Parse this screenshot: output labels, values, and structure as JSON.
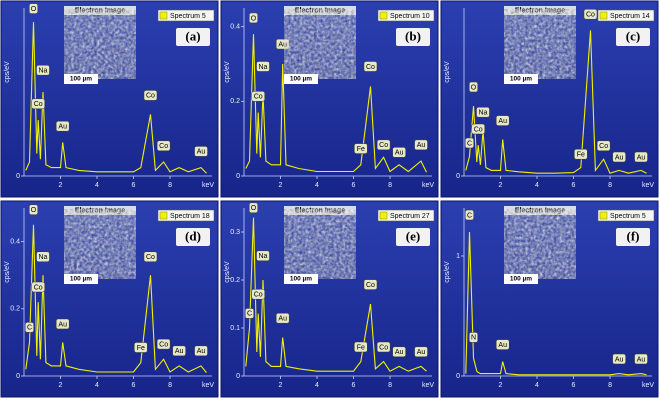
{
  "chart_data": [
    {
      "type": "line",
      "panel": "(a)",
      "inset_title": "Electron Image",
      "scale_bar": "100 µm",
      "xlabel": "keV",
      "ylabel": "cps/eV",
      "x": [
        0.1,
        0.3,
        0.52,
        0.7,
        0.78,
        0.9,
        1.04,
        1.2,
        1.5,
        2.0,
        2.12,
        2.3,
        3,
        4,
        5,
        6,
        6.4,
        6.93,
        7.2,
        7.65,
        8,
        8.5,
        9,
        9.7,
        10
      ],
      "series": [
        {
          "name": "Spectrum 5",
          "color": "#f2f200",
          "values": [
            0.02,
            0.05,
            0.55,
            0.08,
            0.2,
            0.06,
            0.3,
            0.04,
            0.03,
            0.03,
            0.12,
            0.03,
            0.02,
            0.015,
            0.015,
            0.015,
            0.03,
            0.22,
            0.02,
            0.05,
            0.015,
            0.03,
            0.015,
            0.03,
            0.01
          ]
        }
      ],
      "xlim": [
        0,
        10.3
      ],
      "xticks": [
        2,
        4,
        6,
        8
      ],
      "ylim": [
        0,
        0.6
      ],
      "yticks": [
        0
      ],
      "peaks": [
        {
          "label": "O",
          "x": 0.52,
          "y": 0.58
        },
        {
          "label": "Na",
          "x": 1.04,
          "y": 0.36
        },
        {
          "label": "Co",
          "x": 0.78,
          "y": 0.24
        },
        {
          "label": "Au",
          "x": 2.12,
          "y": 0.16
        },
        {
          "label": "Co",
          "x": 6.93,
          "y": 0.27
        },
        {
          "label": "Co",
          "x": 7.65,
          "y": 0.09
        },
        {
          "label": "Au",
          "x": 9.7,
          "y": 0.07
        }
      ]
    },
    {
      "type": "line",
      "panel": "(b)",
      "inset_title": "Electron Image",
      "scale_bar": "100 µm",
      "xlabel": "keV",
      "ylabel": "cps/eV",
      "x": [
        0.1,
        0.3,
        0.52,
        0.7,
        0.78,
        0.9,
        1.04,
        1.2,
        1.5,
        2.0,
        2.12,
        2.3,
        3,
        4,
        5,
        6,
        6.4,
        6.93,
        7.2,
        7.65,
        8,
        8.5,
        9,
        9.7,
        10
      ],
      "series": [
        {
          "name": "Spectrum 10",
          "color": "#f2f200",
          "values": [
            0.02,
            0.04,
            0.38,
            0.06,
            0.17,
            0.05,
            0.22,
            0.04,
            0.03,
            0.03,
            0.3,
            0.03,
            0.02,
            0.012,
            0.012,
            0.012,
            0.03,
            0.24,
            0.02,
            0.05,
            0.012,
            0.03,
            0.012,
            0.04,
            0.01
          ]
        }
      ],
      "xlim": [
        0,
        10.3
      ],
      "xticks": [
        2,
        4,
        6,
        8
      ],
      "ylim": [
        0,
        0.45
      ],
      "yticks": [
        0,
        0.2,
        0.4
      ],
      "peaks": [
        {
          "label": "O",
          "x": 0.52,
          "y": 0.41
        },
        {
          "label": "Na",
          "x": 1.04,
          "y": 0.28
        },
        {
          "label": "Co",
          "x": 0.78,
          "y": 0.2
        },
        {
          "label": "Au",
          "x": 2.12,
          "y": 0.34
        },
        {
          "label": "Fe",
          "x": 6.4,
          "y": 0.06
        },
        {
          "label": "Co",
          "x": 6.93,
          "y": 0.28
        },
        {
          "label": "Co",
          "x": 7.65,
          "y": 0.07
        },
        {
          "label": "Au",
          "x": 8.5,
          "y": 0.05
        },
        {
          "label": "Au",
          "x": 9.7,
          "y": 0.07
        }
      ]
    },
    {
      "type": "line",
      "panel": "(c)",
      "inset_title": "Electron Image",
      "scale_bar": "100 µm",
      "xlabel": "keV",
      "ylabel": "cps/eV",
      "x": [
        0.1,
        0.3,
        0.52,
        0.7,
        0.78,
        0.9,
        1.04,
        1.2,
        1.5,
        2.0,
        2.12,
        2.3,
        3,
        4,
        5,
        6,
        6.4,
        6.93,
        7.2,
        7.65,
        8,
        8.5,
        9,
        9.7,
        10
      ],
      "series": [
        {
          "name": "Spectrum 14",
          "color": "#f2f200",
          "values": [
            0.02,
            0.07,
            0.25,
            0.05,
            0.11,
            0.04,
            0.16,
            0.03,
            0.02,
            0.02,
            0.13,
            0.02,
            0.015,
            0.01,
            0.01,
            0.012,
            0.03,
            0.52,
            0.02,
            0.06,
            0.01,
            0.02,
            0.01,
            0.02,
            0.01
          ]
        }
      ],
      "xlim": [
        0,
        10.3
      ],
      "xticks": [
        2,
        4,
        6,
        8
      ],
      "ylim": [
        0,
        0.6
      ],
      "yticks": [
        0
      ],
      "peaks": [
        {
          "label": "C",
          "x": 0.3,
          "y": 0.1
        },
        {
          "label": "O",
          "x": 0.52,
          "y": 0.3
        },
        {
          "label": "Na",
          "x": 1.04,
          "y": 0.21
        },
        {
          "label": "Co",
          "x": 0.78,
          "y": 0.15
        },
        {
          "label": "Au",
          "x": 2.12,
          "y": 0.18
        },
        {
          "label": "Fe",
          "x": 6.4,
          "y": 0.06
        },
        {
          "label": "Co",
          "x": 6.93,
          "y": 0.56
        },
        {
          "label": "Co",
          "x": 7.65,
          "y": 0.09
        },
        {
          "label": "Au",
          "x": 8.5,
          "y": 0.05
        },
        {
          "label": "Au",
          "x": 9.7,
          "y": 0.05
        }
      ]
    },
    {
      "type": "line",
      "panel": "(d)",
      "inset_title": "Electron Image",
      "scale_bar": "100 µm",
      "xlabel": "keV",
      "ylabel": "cps/eV",
      "x": [
        0.1,
        0.3,
        0.52,
        0.7,
        0.78,
        0.9,
        1.04,
        1.2,
        1.5,
        2.0,
        2.12,
        2.3,
        3,
        4,
        5,
        6,
        6.4,
        6.93,
        7.2,
        7.65,
        8,
        8.5,
        9,
        9.7,
        10
      ],
      "series": [
        {
          "name": "Spectrum 18",
          "color": "#f2f200",
          "values": [
            0.02,
            0.1,
            0.45,
            0.06,
            0.22,
            0.05,
            0.3,
            0.04,
            0.03,
            0.03,
            0.1,
            0.03,
            0.02,
            0.012,
            0.012,
            0.012,
            0.04,
            0.3,
            0.02,
            0.05,
            0.012,
            0.03,
            0.012,
            0.03,
            0.01
          ]
        }
      ],
      "xlim": [
        0,
        10.3
      ],
      "xticks": [
        2,
        4,
        6,
        8
      ],
      "ylim": [
        0,
        0.5
      ],
      "yticks": [
        0,
        0.2,
        0.4
      ],
      "peaks": [
        {
          "label": "C",
          "x": 0.3,
          "y": 0.13
        },
        {
          "label": "O",
          "x": 0.52,
          "y": 0.48
        },
        {
          "label": "Na",
          "x": 1.04,
          "y": 0.34
        },
        {
          "label": "Co",
          "x": 0.78,
          "y": 0.25
        },
        {
          "label": "Au",
          "x": 2.12,
          "y": 0.14
        },
        {
          "label": "Fe",
          "x": 6.4,
          "y": 0.07
        },
        {
          "label": "Co",
          "x": 6.93,
          "y": 0.34
        },
        {
          "label": "Co",
          "x": 7.65,
          "y": 0.08
        },
        {
          "label": "Au",
          "x": 8.5,
          "y": 0.06
        },
        {
          "label": "Au",
          "x": 9.7,
          "y": 0.06
        }
      ]
    },
    {
      "type": "line",
      "panel": "(e)",
      "inset_title": "Electron Image",
      "scale_bar": "100 µm",
      "xlabel": "keV",
      "ylabel": "cps/eV",
      "x": [
        0.1,
        0.3,
        0.52,
        0.7,
        0.78,
        0.9,
        1.04,
        1.2,
        1.5,
        2.0,
        2.12,
        2.3,
        3,
        4,
        5,
        6,
        6.4,
        6.93,
        7.2,
        7.65,
        8,
        8.5,
        9,
        9.7,
        10
      ],
      "series": [
        {
          "name": "Spectrum 27",
          "color": "#f2f200",
          "values": [
            0.02,
            0.1,
            0.33,
            0.05,
            0.13,
            0.04,
            0.2,
            0.03,
            0.02,
            0.02,
            0.08,
            0.02,
            0.015,
            0.01,
            0.01,
            0.01,
            0.03,
            0.15,
            0.015,
            0.03,
            0.01,
            0.02,
            0.01,
            0.02,
            0.01
          ]
        }
      ],
      "xlim": [
        0,
        10.3
      ],
      "xticks": [
        2,
        4,
        6,
        8
      ],
      "ylim": [
        0,
        0.35
      ],
      "yticks": [
        0,
        0.1,
        0.2,
        0.3
      ],
      "peaks": [
        {
          "label": "C",
          "x": 0.3,
          "y": 0.12
        },
        {
          "label": "O",
          "x": 0.52,
          "y": 0.34
        },
        {
          "label": "Na",
          "x": 1.04,
          "y": 0.24
        },
        {
          "label": "Co",
          "x": 0.78,
          "y": 0.16
        },
        {
          "label": "Au",
          "x": 2.12,
          "y": 0.11
        },
        {
          "label": "Fe",
          "x": 6.4,
          "y": 0.05
        },
        {
          "label": "Co",
          "x": 6.93,
          "y": 0.18
        },
        {
          "label": "Co",
          "x": 7.65,
          "y": 0.05
        },
        {
          "label": "Au",
          "x": 8.5,
          "y": 0.04
        },
        {
          "label": "Au",
          "x": 9.7,
          "y": 0.04
        }
      ]
    },
    {
      "type": "line",
      "panel": "(f)",
      "inset_title": "Electron Image",
      "scale_bar": "100 µm",
      "xlabel": "keV",
      "ylabel": "cps/eV",
      "x": [
        0.1,
        0.3,
        0.52,
        0.7,
        0.78,
        0.9,
        1.04,
        1.2,
        1.5,
        2.0,
        2.12,
        2.3,
        3,
        4,
        5,
        6,
        6.4,
        6.93,
        7.2,
        7.65,
        8,
        8.5,
        9,
        9.7,
        10
      ],
      "series": [
        {
          "name": "Spectrum 5",
          "color": "#f2f200",
          "values": [
            0.02,
            1.2,
            0.15,
            0.04,
            0.03,
            0.02,
            0.02,
            0.02,
            0.02,
            0.02,
            0.12,
            0.02,
            0.01,
            0.01,
            0.01,
            0.01,
            0.01,
            0.01,
            0.01,
            0.01,
            0.01,
            0.02,
            0.01,
            0.02,
            0.01
          ]
        }
      ],
      "xlim": [
        0,
        10.3
      ],
      "xticks": [
        2,
        4,
        6,
        8
      ],
      "ylim": [
        0,
        1.4
      ],
      "yticks": [
        0,
        1
      ],
      "peaks": [
        {
          "label": "C",
          "x": 0.3,
          "y": 1.3
        },
        {
          "label": "N",
          "x": 0.52,
          "y": 0.28
        },
        {
          "label": "Au",
          "x": 2.12,
          "y": 0.22
        },
        {
          "label": "Au",
          "x": 8.5,
          "y": 0.1
        },
        {
          "label": "Au",
          "x": 9.7,
          "y": 0.1
        }
      ]
    }
  ]
}
